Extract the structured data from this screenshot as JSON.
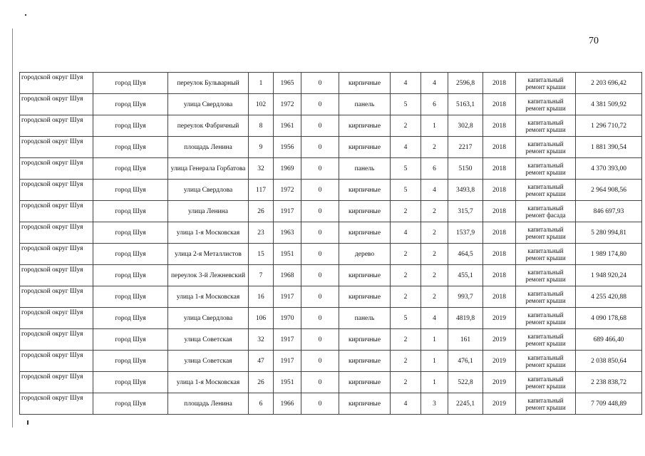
{
  "page_number": "70",
  "rows": [
    [
      "городской округ Шуя",
      "город Шуя",
      "переулок Бульварный",
      "1",
      "1965",
      "0",
      "кирпичные",
      "4",
      "4",
      "2596,8",
      "2018",
      "капитальный ремонт крыши",
      "2 203 696,42"
    ],
    [
      "городской округ Шуя",
      "город Шуя",
      "улица Свердлова",
      "102",
      "1972",
      "0",
      "панель",
      "5",
      "6",
      "5163,1",
      "2018",
      "капитальный ремонт крыши",
      "4 381 509,92"
    ],
    [
      "городской округ Шуя",
      "город Шуя",
      "переулок Фабричный",
      "8",
      "1961",
      "0",
      "кирпичные",
      "2",
      "1",
      "302,8",
      "2018",
      "капитальный ремонт крыши",
      "1 296 710,72"
    ],
    [
      "городской округ Шуя",
      "город Шуя",
      "площадь Ленина",
      "9",
      "1956",
      "0",
      "кирпичные",
      "4",
      "2",
      "2217",
      "2018",
      "капитальный ремонт крыши",
      "1 881 390,54"
    ],
    [
      "городской округ Шуя",
      "город Шуя",
      "улица Генерала Горбатова",
      "32",
      "1969",
      "0",
      "панель",
      "5",
      "6",
      "5150",
      "2018",
      "капитальный ремонт крыши",
      "4 370 393,00"
    ],
    [
      "городской округ Шуя",
      "город Шуя",
      "улица Свердлова",
      "117",
      "1972",
      "0",
      "кирпичные",
      "5",
      "4",
      "3493,8",
      "2018",
      "капитальный ремонт крыши",
      "2 964 908,56"
    ],
    [
      "городской округ Шуя",
      "город Шуя",
      "улица Ленина",
      "26",
      "1917",
      "0",
      "кирпичные",
      "2",
      "2",
      "315,7",
      "2018",
      "капитальный ремонт фасада",
      "846 697,93"
    ],
    [
      "городской округ Шуя",
      "город Шуя",
      "улица 1-я Московская",
      "23",
      "1963",
      "0",
      "кирпичные",
      "4",
      "2",
      "1537,9",
      "2018",
      "капитальный ремонт крыши",
      "5 280 994,81"
    ],
    [
      "городской округ Шуя",
      "город Шуя",
      "улица 2-я Металлистов",
      "15",
      "1951",
      "0",
      "дерево",
      "2",
      "2",
      "464,5",
      "2018",
      "капитальный ремонт крыши",
      "1 989 174,80"
    ],
    [
      "городской округ Шуя",
      "город Шуя",
      "переулок 3-й Лежневский",
      "7",
      "1968",
      "0",
      "кирпичные",
      "2",
      "2",
      "455,1",
      "2018",
      "капитальный ремонт крыши",
      "1 948 920,24"
    ],
    [
      "городской округ Шуя",
      "город Шуя",
      "улица 1-я Московская",
      "16",
      "1917",
      "0",
      "кирпичные",
      "2",
      "2",
      "993,7",
      "2018",
      "капитальный ремонт крыши",
      "4 255 420,88"
    ],
    [
      "городской округ Шуя",
      "город Шуя",
      "улица Свердлова",
      "106",
      "1970",
      "0",
      "панель",
      "5",
      "4",
      "4819,8",
      "2019",
      "капитальный ремонт крыши",
      "4 090 178,68"
    ],
    [
      "городской округ Шуя",
      "город Шуя",
      "улица Советская",
      "32",
      "1917",
      "0",
      "кирпичные",
      "2",
      "1",
      "161",
      "2019",
      "капитальный ремонт крыши",
      "689 466,40"
    ],
    [
      "городской округ Шуя",
      "город Шуя",
      "улица Советская",
      "47",
      "1917",
      "0",
      "кирпичные",
      "2",
      "1",
      "476,1",
      "2019",
      "капитальный ремонт крыши",
      "2 038 850,64"
    ],
    [
      "городской округ Шуя",
      "город Шуя",
      "улица 1-я Московская",
      "26",
      "1951",
      "0",
      "кирпичные",
      "2",
      "1",
      "522,8",
      "2019",
      "капитальный ремонт крыши",
      "2 238 838,72"
    ],
    [
      "городской округ Шуя",
      "город Шуя",
      "площадь Ленина",
      "6",
      "1966",
      "0",
      "кирпичные",
      "4",
      "3",
      "2245,1",
      "2019",
      "капитальный ремонт крыши",
      "7 709 448,89"
    ]
  ]
}
